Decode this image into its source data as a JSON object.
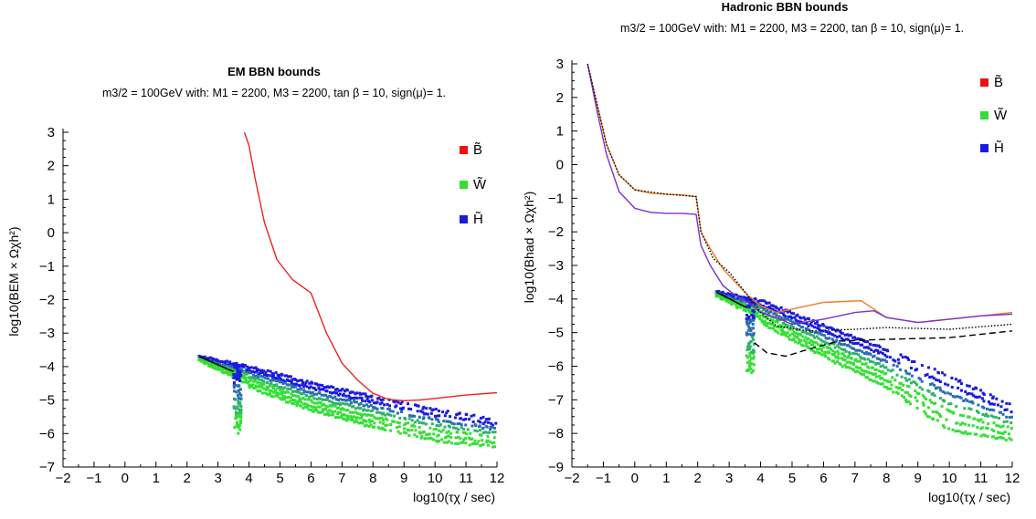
{
  "chart_data": [
    {
      "type": "scatter",
      "title": "EM BBN bounds",
      "subtitle": "m3/2 = 100GeV with: M1 = 2200, M3 = 2200, tan β = 10, sign(μ)= 1.",
      "xlabel": "log10(τχ / sec)",
      "ylabel": "log10(BEM × Ωχh²)",
      "xlim": [
        -2,
        12
      ],
      "ylim": [
        -7,
        3
      ],
      "x_ticks": [
        "−2",
        "−1",
        "0",
        "1",
        "2",
        "3",
        "4",
        "5",
        "6",
        "7",
        "8",
        "9",
        "10",
        "11",
        "12"
      ],
      "y_ticks": [
        "−7",
        "−6",
        "−5",
        "−4",
        "−3",
        "−2",
        "−1",
        "0",
        "1",
        "2",
        "3"
      ],
      "legend": [
        {
          "name": "B̃",
          "color": "#ee1111"
        },
        {
          "name": "W̃",
          "color": "#33dd33"
        },
        {
          "name": "H̃",
          "color": "#1a1adf"
        }
      ],
      "legend_position": "top-right",
      "lines": [
        {
          "name": "bound",
          "color": "#ee2222",
          "points": [
            [
              3.85,
              3.0
            ],
            [
              4.0,
              2.6
            ],
            [
              4.2,
              1.6
            ],
            [
              4.5,
              0.3
            ],
            [
              4.9,
              -0.8
            ],
            [
              5.4,
              -1.4
            ],
            [
              6.0,
              -1.8
            ],
            [
              6.5,
              -3.0
            ],
            [
              7.0,
              -3.9
            ],
            [
              7.5,
              -4.4
            ],
            [
              8.0,
              -4.8
            ],
            [
              8.5,
              -4.98
            ],
            [
              9.0,
              -5.02
            ],
            [
              9.5,
              -5.0
            ],
            [
              10.0,
              -4.95
            ],
            [
              11.0,
              -4.85
            ],
            [
              12.0,
              -4.78
            ]
          ]
        }
      ],
      "scatter_region": {
        "description_free_points": true,
        "spike_x": [
          3.5,
          3.75
        ],
        "spike_y": [
          -6.0,
          -3.95
        ],
        "band_start": [
          2.4,
          -3.7
        ],
        "band_upper": [
          [
            4.0,
            -4.0
          ],
          [
            6.0,
            -4.5
          ],
          [
            8.0,
            -4.9
          ],
          [
            10.0,
            -5.3
          ],
          [
            12.0,
            -5.6
          ]
        ],
        "band_lower": [
          [
            4.0,
            -4.6
          ],
          [
            6.0,
            -5.3
          ],
          [
            8.0,
            -5.8
          ],
          [
            10.0,
            -6.2
          ],
          [
            12.0,
            -6.4
          ]
        ]
      }
    },
    {
      "type": "scatter",
      "title": "Hadronic BBN bounds",
      "subtitle": "m3/2 = 100GeV with: M1 = 2200, M3 = 2200, tan β = 10, sign(μ)= 1.",
      "xlabel": "log10(τχ / sec)",
      "ylabel": "log10(Bhad × Ωχh²)",
      "xlim": [
        -2,
        12
      ],
      "ylim": [
        -9,
        3
      ],
      "x_ticks": [
        "−2",
        "−1",
        "0",
        "1",
        "2",
        "3",
        "4",
        "5",
        "6",
        "7",
        "8",
        "9",
        "10",
        "11",
        "12"
      ],
      "y_ticks": [
        "−9",
        "−8",
        "−7",
        "−6",
        "−5",
        "−4",
        "−3",
        "−2",
        "−1",
        "0",
        "1",
        "2",
        "3"
      ],
      "legend": [
        {
          "name": "B̃",
          "color": "#ee1111"
        },
        {
          "name": "W̃",
          "color": "#33dd33"
        },
        {
          "name": "H̃",
          "color": "#1a1adf"
        }
      ],
      "legend_position": "top-right",
      "lines": [
        {
          "name": "orange",
          "color": "#ee7a22",
          "points": [
            [
              -1.5,
              3.0
            ],
            [
              -1.2,
              1.8
            ],
            [
              -0.9,
              0.6
            ],
            [
              -0.5,
              -0.3
            ],
            [
              0.0,
              -0.75
            ],
            [
              0.5,
              -0.85
            ],
            [
              1.0,
              -0.88
            ],
            [
              1.5,
              -0.9
            ],
            [
              1.95,
              -0.95
            ],
            [
              2.1,
              -2.0
            ],
            [
              2.4,
              -2.5
            ],
            [
              2.8,
              -3.1
            ],
            [
              3.2,
              -3.5
            ],
            [
              3.6,
              -3.9
            ],
            [
              4.0,
              -4.2
            ],
            [
              4.5,
              -4.4
            ],
            [
              5.0,
              -4.3
            ],
            [
              6.0,
              -4.1
            ],
            [
              7.2,
              -4.05
            ],
            [
              7.6,
              -4.3
            ],
            [
              8.0,
              -4.55
            ],
            [
              9.0,
              -4.7
            ],
            [
              10.0,
              -4.6
            ],
            [
              11.0,
              -4.5
            ],
            [
              12.0,
              -4.4
            ]
          ]
        },
        {
          "name": "purple",
          "color": "#7733cc",
          "points": [
            [
              -1.5,
              3.0
            ],
            [
              -1.2,
              1.6
            ],
            [
              -0.9,
              0.3
            ],
            [
              -0.5,
              -0.8
            ],
            [
              0.0,
              -1.3
            ],
            [
              0.5,
              -1.42
            ],
            [
              1.0,
              -1.45
            ],
            [
              1.5,
              -1.45
            ],
            [
              1.95,
              -1.48
            ],
            [
              2.1,
              -2.4
            ],
            [
              2.4,
              -3.0
            ],
            [
              2.8,
              -3.6
            ],
            [
              3.2,
              -3.9
            ],
            [
              3.6,
              -4.1
            ],
            [
              4.0,
              -4.4
            ],
            [
              4.5,
              -4.55
            ],
            [
              5.0,
              -4.75
            ],
            [
              6.0,
              -4.6
            ],
            [
              7.0,
              -4.4
            ],
            [
              7.6,
              -4.35
            ],
            [
              8.0,
              -4.55
            ],
            [
              9.0,
              -4.7
            ],
            [
              10.0,
              -4.6
            ],
            [
              11.0,
              -4.5
            ],
            [
              12.0,
              -4.45
            ]
          ]
        },
        {
          "name": "dotted",
          "color": "#000000",
          "dash": "1.5,2",
          "points": [
            [
              -1.5,
              3.0
            ],
            [
              -1.2,
              1.8
            ],
            [
              -0.9,
              0.6
            ],
            [
              -0.5,
              -0.3
            ],
            [
              0.0,
              -0.75
            ],
            [
              1.0,
              -0.88
            ],
            [
              1.95,
              -0.95
            ],
            [
              2.1,
              -2.0
            ],
            [
              2.5,
              -2.8
            ],
            [
              3.0,
              -3.2
            ],
            [
              3.6,
              -3.9
            ],
            [
              4.0,
              -4.4
            ],
            [
              4.5,
              -4.8
            ],
            [
              5.5,
              -4.95
            ],
            [
              7.0,
              -4.9
            ],
            [
              8.0,
              -4.85
            ],
            [
              10.0,
              -4.9
            ],
            [
              12.0,
              -4.75
            ]
          ]
        },
        {
          "name": "dashed",
          "color": "#000000",
          "dash": "7,4",
          "points": [
            [
              3.8,
              -5.3
            ],
            [
              4.2,
              -5.6
            ],
            [
              4.8,
              -5.7
            ],
            [
              5.5,
              -5.5
            ],
            [
              6.5,
              -5.25
            ],
            [
              8.0,
              -5.2
            ],
            [
              10.0,
              -5.15
            ],
            [
              12.0,
              -4.95
            ]
          ]
        }
      ],
      "scatter_region": {
        "spike_x": [
          3.55,
          3.8
        ],
        "spike_y": [
          -6.2,
          -4.0
        ],
        "band_start": [
          2.6,
          -3.8
        ],
        "band_upper": [
          [
            4.0,
            -4.05
          ],
          [
            6.0,
            -4.8
          ],
          [
            8.0,
            -5.5
          ],
          [
            10.0,
            -6.3
          ],
          [
            12.0,
            -7.2
          ]
        ],
        "band_lower": [
          [
            4.0,
            -4.7
          ],
          [
            6.0,
            -5.7
          ],
          [
            8.0,
            -6.6
          ],
          [
            10.0,
            -7.9
          ],
          [
            12.0,
            -8.2
          ]
        ]
      }
    }
  ]
}
